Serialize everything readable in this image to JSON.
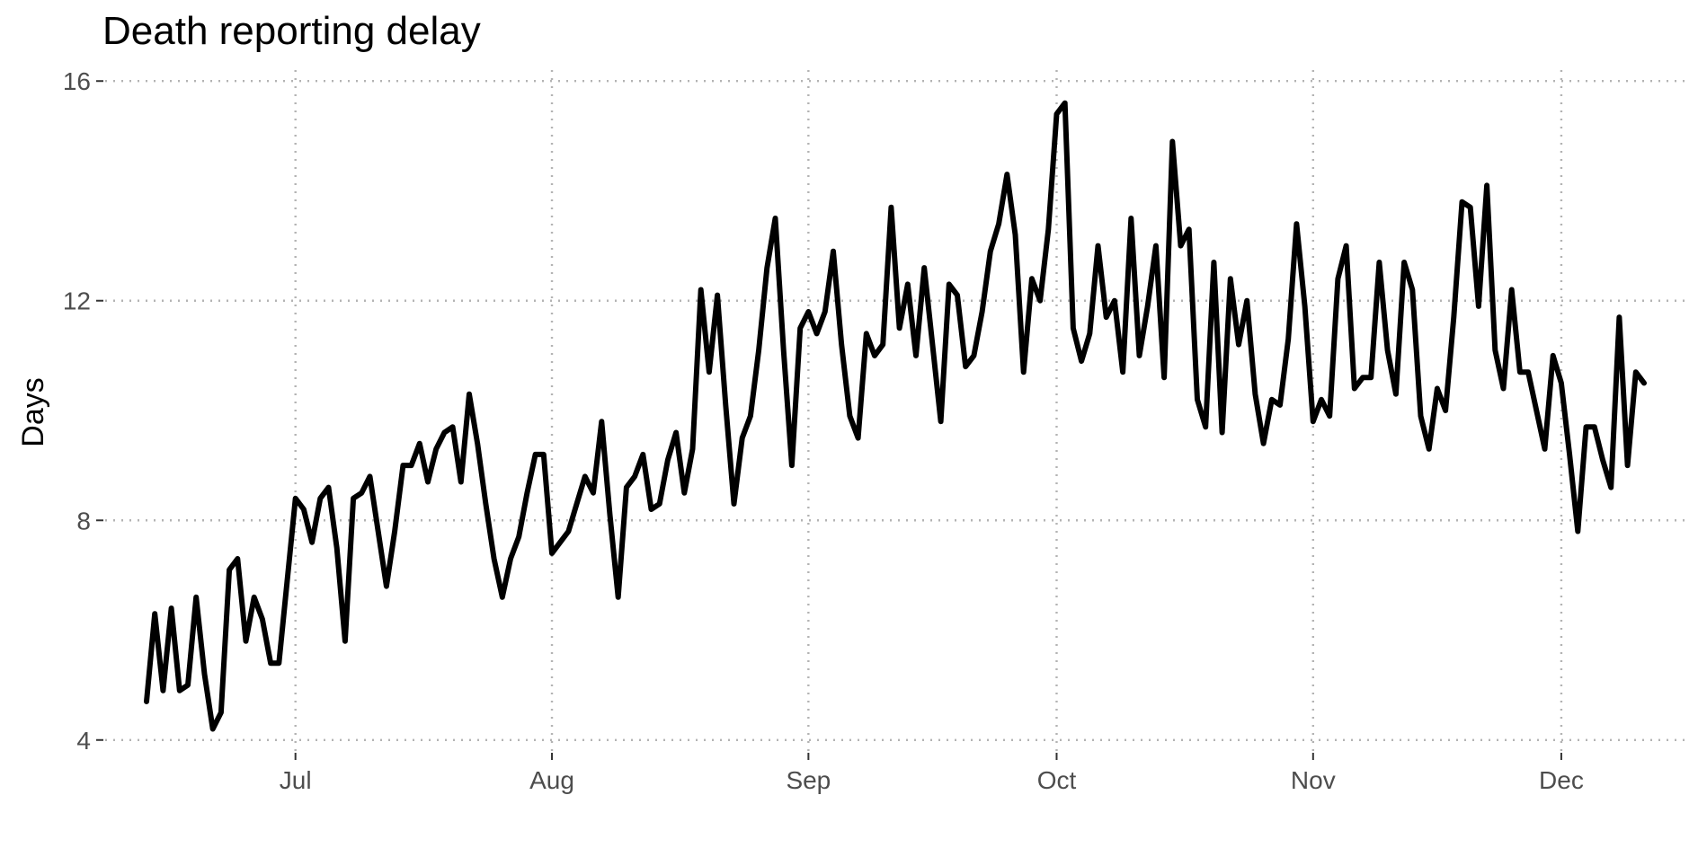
{
  "chart_data": {
    "type": "line",
    "title": "Death reporting delay",
    "xlabel": "",
    "ylabel": "Days",
    "ylim": [
      3.8,
      16.2
    ],
    "xlim": [
      "2020-06-08",
      "2020-12-16"
    ],
    "y_ticks": [
      4,
      8,
      12,
      16
    ],
    "x_ticks": [
      {
        "date": "2020-07-01",
        "label": "Jul"
      },
      {
        "date": "2020-08-01",
        "label": "Aug"
      },
      {
        "date": "2020-09-01",
        "label": "Sep"
      },
      {
        "date": "2020-10-01",
        "label": "Oct"
      },
      {
        "date": "2020-11-01",
        "label": "Nov"
      },
      {
        "date": "2020-12-01",
        "label": "Dec"
      }
    ],
    "grid": true,
    "grid_style": "dotted",
    "line_color": "#000000",
    "series": [
      {
        "x_start": "2020-06-13",
        "y": [
          4.7,
          6.3,
          4.9,
          6.4,
          4.9,
          5.0,
          6.6,
          5.2,
          4.2,
          4.5,
          7.1,
          7.3,
          5.8,
          6.6,
          6.2,
          5.4,
          5.4,
          6.9,
          8.4,
          8.2,
          7.6,
          8.4,
          8.6,
          7.5,
          5.8,
          8.4,
          8.5,
          8.8,
          7.8,
          6.8,
          7.8,
          9.0,
          9.0,
          9.4,
          8.7,
          9.3,
          9.6,
          9.7,
          8.7,
          10.3,
          9.4,
          8.3,
          7.3,
          6.6,
          7.3,
          7.7,
          8.5,
          9.2,
          9.2,
          7.4,
          7.6,
          7.8,
          8.3,
          8.8,
          8.5,
          9.8,
          8.1,
          6.6,
          8.6,
          8.8,
          9.2,
          8.2,
          8.3,
          9.1,
          9.6,
          8.5,
          9.3,
          12.2,
          10.7,
          12.1,
          10.1,
          8.3,
          9.5,
          9.9,
          11.1,
          12.6,
          13.5,
          11.1,
          9.0,
          11.5,
          11.8,
          11.4,
          11.8,
          12.9,
          11.2,
          9.9,
          9.5,
          11.4,
          11.0,
          11.2,
          13.7,
          11.5,
          12.3,
          11.0,
          12.6,
          11.2,
          9.8,
          12.3,
          12.1,
          10.8,
          11.0,
          11.8,
          12.9,
          13.4,
          14.3,
          13.2,
          10.7,
          12.4,
          12.0,
          13.3,
          15.4,
          15.6,
          11.5,
          10.9,
          11.4,
          13.0,
          11.7,
          12.0,
          10.7,
          13.5,
          11.0,
          11.9,
          13.0,
          10.6,
          14.9,
          13.0,
          13.3,
          10.2,
          9.7,
          12.7,
          9.6,
          12.4,
          11.2,
          12.0,
          10.3,
          9.4,
          10.2,
          10.1,
          11.3,
          13.4,
          11.9,
          9.8,
          10.2,
          9.9,
          12.4,
          13.0,
          10.4,
          10.6,
          10.6,
          12.7,
          11.1,
          10.3,
          12.7,
          12.2,
          9.9,
          9.3,
          10.4,
          10.0,
          11.7,
          13.8,
          13.7,
          11.9,
          14.1,
          11.1,
          10.4,
          12.2,
          10.7,
          10.7,
          10.0,
          9.3,
          11.0,
          10.5,
          9.2,
          7.8,
          9.7,
          9.7,
          9.1,
          8.6,
          11.7,
          9.0,
          10.7,
          10.5
        ]
      }
    ]
  }
}
